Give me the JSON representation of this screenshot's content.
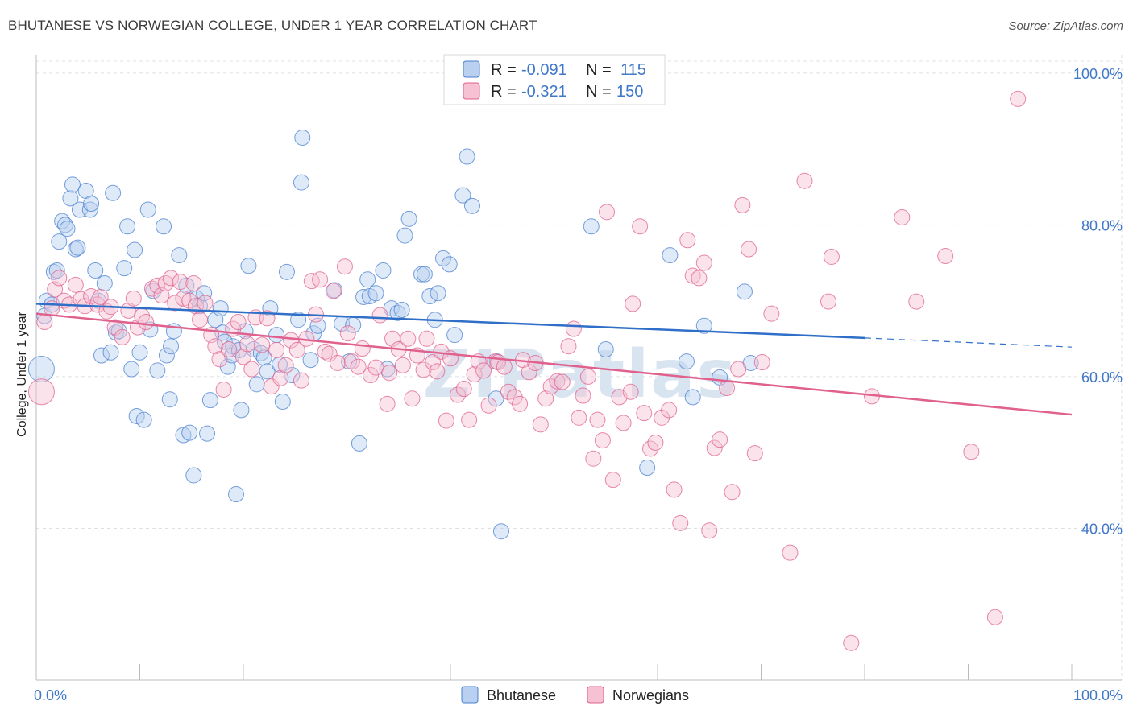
{
  "title": "BHUTANESE VS NORWEGIAN COLLEGE, UNDER 1 YEAR CORRELATION CHART",
  "source": "Source: ZipAtlas.com",
  "watermark": "ZIPatlas",
  "colors": {
    "bhutanese": "#4a7fd0",
    "bhutanese_fill": "#b9d0f0",
    "norwegians": "#e0608e",
    "norwegians_fill": "#f5c1d3",
    "grid": "#dde1e6",
    "tick_label": "#3f77c9"
  },
  "legend": {
    "rows": [
      {
        "r_label": "R =",
        "r_value": "-0.091",
        "n_label": "N =",
        "n_value": "115"
      },
      {
        "r_label": "R =",
        "r_value": "-0.321",
        "n_label": "N =",
        "n_value": "150"
      }
    ],
    "placement": "top-center"
  },
  "bottom_legend": [
    "Bhutanese",
    "Norwegians"
  ],
  "chart_data": {
    "type": "scatter",
    "title": "BHUTANESE VS NORWEGIAN COLLEGE, UNDER 1 YEAR CORRELATION CHART",
    "xlabel": "",
    "ylabel": "College, Under 1 year",
    "xlim": [
      0,
      100
    ],
    "ylim": [
      20,
      102
    ],
    "x_tick_labels": [
      "0.0%",
      "100.0%"
    ],
    "y_ticks": [
      40,
      60,
      80,
      100
    ],
    "y_tick_labels": [
      "40.0%",
      "60.0%",
      "80.0%",
      "100.0%"
    ],
    "grid": true,
    "series": [
      {
        "name": "Bhutanese",
        "r": -0.091,
        "n": 115,
        "trend": {
          "x0": 0,
          "y0": 69.6,
          "x1": 80,
          "y1": 65.1,
          "dashed_to_x": 100,
          "dashed_to_y": 63.9
        },
        "points": [
          [
            0.5,
            61
          ],
          [
            0.8,
            68
          ],
          [
            1,
            70
          ],
          [
            1.5,
            69.5
          ],
          [
            1.7,
            73.8
          ],
          [
            2,
            74
          ],
          [
            2.2,
            77.8
          ],
          [
            2.5,
            80.5
          ],
          [
            2.8,
            80
          ],
          [
            3,
            79.5
          ],
          [
            3.3,
            83.5
          ],
          [
            3.5,
            85.3
          ],
          [
            3.8,
            76.8
          ],
          [
            4,
            77
          ],
          [
            4.2,
            82
          ],
          [
            4.8,
            84.5
          ],
          [
            5.2,
            82
          ],
          [
            5.3,
            82.8
          ],
          [
            5.7,
            74
          ],
          [
            6,
            70
          ],
          [
            6.3,
            62.8
          ],
          [
            6.6,
            72.3
          ],
          [
            7.2,
            63.2
          ],
          [
            7.4,
            84.2
          ],
          [
            7.7,
            65.8
          ],
          [
            8,
            66
          ],
          [
            8.5,
            74.3
          ],
          [
            8.8,
            79.8
          ],
          [
            9.2,
            61
          ],
          [
            9.5,
            76.7
          ],
          [
            9.7,
            54.8
          ],
          [
            10,
            63.2
          ],
          [
            10.4,
            54.3
          ],
          [
            10.8,
            82
          ],
          [
            11,
            66.2
          ],
          [
            11.3,
            71.3
          ],
          [
            11.7,
            60.8
          ],
          [
            12.3,
            79.8
          ],
          [
            12.6,
            62.8
          ],
          [
            12.9,
            57
          ],
          [
            13,
            64
          ],
          [
            13.3,
            66
          ],
          [
            13.8,
            76
          ],
          [
            14.2,
            52.3
          ],
          [
            14.5,
            72
          ],
          [
            14.8,
            52.6
          ],
          [
            15.2,
            47
          ],
          [
            15.5,
            70.3
          ],
          [
            15.8,
            69.3
          ],
          [
            16.2,
            71
          ],
          [
            16.5,
            52.5
          ],
          [
            16.8,
            56.9
          ],
          [
            17.3,
            67.5
          ],
          [
            17.8,
            69
          ],
          [
            18,
            65.8
          ],
          [
            18.2,
            64.6
          ],
          [
            18.5,
            61.3
          ],
          [
            18.9,
            62.8
          ],
          [
            19,
            64
          ],
          [
            19.3,
            44.5
          ],
          [
            19.6,
            63.5
          ],
          [
            19.8,
            55.6
          ],
          [
            20.2,
            66
          ],
          [
            20.5,
            74.6
          ],
          [
            21,
            63.6
          ],
          [
            21.3,
            59
          ],
          [
            21.7,
            63.1
          ],
          [
            22,
            62.5
          ],
          [
            22.3,
            60.7
          ],
          [
            22.6,
            69
          ],
          [
            23.2,
            65.5
          ],
          [
            23.5,
            61.6
          ],
          [
            23.8,
            56.7
          ],
          [
            24.2,
            73.8
          ],
          [
            24.7,
            60.2
          ],
          [
            25.3,
            67.5
          ],
          [
            25.7,
            91.5
          ],
          [
            25.6,
            85.6
          ],
          [
            26.5,
            62.2
          ],
          [
            26.8,
            65.7
          ],
          [
            27.2,
            66.7
          ],
          [
            28.8,
            71.4
          ],
          [
            29.5,
            67
          ],
          [
            30.2,
            62
          ],
          [
            30.6,
            66.8
          ],
          [
            31.2,
            51.2
          ],
          [
            31.6,
            70.5
          ],
          [
            32,
            72.8
          ],
          [
            32.2,
            70.6
          ],
          [
            32.8,
            71
          ],
          [
            33.5,
            74
          ],
          [
            33.9,
            61
          ],
          [
            34.3,
            69
          ],
          [
            34.9,
            68.4
          ],
          [
            35.3,
            68.8
          ],
          [
            35.6,
            78.6
          ],
          [
            36,
            80.8
          ],
          [
            37.2,
            73.5
          ],
          [
            37.5,
            73.5
          ],
          [
            38,
            70.6
          ],
          [
            38.8,
            71
          ],
          [
            38.5,
            67.5
          ],
          [
            39.3,
            75.6
          ],
          [
            39.9,
            74.8
          ],
          [
            40.4,
            65.5
          ],
          [
            41.2,
            83.9
          ],
          [
            41.6,
            89
          ],
          [
            42.1,
            82.5
          ],
          [
            44.4,
            57.1
          ],
          [
            44.5,
            62
          ],
          [
            44.9,
            39.6
          ],
          [
            53.6,
            79.8
          ],
          [
            55,
            63.6
          ],
          [
            59,
            48
          ],
          [
            61.2,
            76
          ],
          [
            62.8,
            62
          ],
          [
            63.4,
            57.3
          ],
          [
            64.5,
            66.7
          ],
          [
            66,
            59.9
          ],
          [
            68.4,
            71.2
          ],
          [
            69,
            61.8
          ]
        ]
      },
      {
        "name": "Norwegians",
        "r": -0.321,
        "n": 150,
        "trend": {
          "x0": 0,
          "y0": 68.3,
          "x1": 100,
          "y1": 55.0
        },
        "points": [
          [
            0.5,
            58
          ],
          [
            0.8,
            67.2
          ],
          [
            1.5,
            69
          ],
          [
            1.8,
            71.5
          ],
          [
            2.2,
            73
          ],
          [
            2.7,
            70
          ],
          [
            3.2,
            69.5
          ],
          [
            3.8,
            72.1
          ],
          [
            4.3,
            70.2
          ],
          [
            4.7,
            69.3
          ],
          [
            5.3,
            70.6
          ],
          [
            5.9,
            69.5
          ],
          [
            6.2,
            70.5
          ],
          [
            6.8,
            68.6
          ],
          [
            7.2,
            69.2
          ],
          [
            7.6,
            66.5
          ],
          [
            8.3,
            65.2
          ],
          [
            8.9,
            68.7
          ],
          [
            9.4,
            70.3
          ],
          [
            9.8,
            66.5
          ],
          [
            10.2,
            68
          ],
          [
            10.6,
            67.2
          ],
          [
            11.2,
            71.6
          ],
          [
            11.7,
            72
          ],
          [
            12.1,
            70.7
          ],
          [
            12.5,
            72.3
          ],
          [
            13,
            73
          ],
          [
            13.4,
            69.7
          ],
          [
            13.9,
            72.5
          ],
          [
            14.2,
            70.3
          ],
          [
            14.8,
            70
          ],
          [
            15.2,
            72.3
          ],
          [
            15.4,
            69.3
          ],
          [
            15.8,
            67.5
          ],
          [
            16.3,
            69.7
          ],
          [
            16.9,
            65.5
          ],
          [
            17.3,
            64
          ],
          [
            17.7,
            62.3
          ],
          [
            18.1,
            58.3
          ],
          [
            18.6,
            63.6
          ],
          [
            19,
            66.3
          ],
          [
            19.5,
            67.2
          ],
          [
            20,
            62.6
          ],
          [
            20.4,
            64.3
          ],
          [
            20.8,
            61
          ],
          [
            21.2,
            67.8
          ],
          [
            21.8,
            64.2
          ],
          [
            22.3,
            67.7
          ],
          [
            22.7,
            58.7
          ],
          [
            23.2,
            63.5
          ],
          [
            23.6,
            59.8
          ],
          [
            24.1,
            61.5
          ],
          [
            24.6,
            64.8
          ],
          [
            25.2,
            63.5
          ],
          [
            25.6,
            59.5
          ],
          [
            26.1,
            65
          ],
          [
            26.6,
            72.6
          ],
          [
            27,
            68.2
          ],
          [
            27.4,
            72.8
          ],
          [
            27.9,
            63.3
          ],
          [
            28.3,
            63
          ],
          [
            28.7,
            71.3
          ],
          [
            29.1,
            61.8
          ],
          [
            29.8,
            74.5
          ],
          [
            30.1,
            65.7
          ],
          [
            30.5,
            62
          ],
          [
            31.1,
            61.3
          ],
          [
            31.5,
            63.7
          ],
          [
            32.3,
            60.2
          ],
          [
            32.8,
            61.2
          ],
          [
            33.2,
            68.1
          ],
          [
            33.9,
            56.4
          ],
          [
            34.1,
            60.5
          ],
          [
            34.4,
            65
          ],
          [
            35,
            63.6
          ],
          [
            35.4,
            61.5
          ],
          [
            35.9,
            65
          ],
          [
            36.3,
            57.1
          ],
          [
            36.8,
            62.8
          ],
          [
            37.4,
            60.9
          ],
          [
            37.7,
            65
          ],
          [
            38.3,
            61.9
          ],
          [
            38.7,
            60.7
          ],
          [
            39.1,
            63.3
          ],
          [
            39.6,
            54.2
          ],
          [
            40,
            62.4
          ],
          [
            40.7,
            57.6
          ],
          [
            41.3,
            58.4
          ],
          [
            41.8,
            54.3
          ],
          [
            42.3,
            60.3
          ],
          [
            42.7,
            62
          ],
          [
            43.2,
            60.8
          ],
          [
            43.7,
            56.2
          ],
          [
            44.3,
            62
          ],
          [
            44.6,
            61.9
          ],
          [
            45.2,
            61.3
          ],
          [
            45.6,
            58
          ],
          [
            46.2,
            57.3
          ],
          [
            46.7,
            56.4
          ],
          [
            47,
            62.2
          ],
          [
            47.6,
            60.6
          ],
          [
            48.2,
            61.8
          ],
          [
            48.7,
            53.7
          ],
          [
            49.2,
            57.1
          ],
          [
            49.7,
            58.7
          ],
          [
            50.3,
            59.4
          ],
          [
            50.8,
            59.3
          ],
          [
            51.4,
            64
          ],
          [
            51.9,
            66.3
          ],
          [
            52.4,
            54.6
          ],
          [
            52.8,
            57.5
          ],
          [
            53.3,
            60
          ],
          [
            53.8,
            49.2
          ],
          [
            54.2,
            54.3
          ],
          [
            54.7,
            51.6
          ],
          [
            55.1,
            81.7
          ],
          [
            55.7,
            46.4
          ],
          [
            56.3,
            57.3
          ],
          [
            56.7,
            53.9
          ],
          [
            57.4,
            58
          ],
          [
            57.6,
            69.6
          ],
          [
            58.3,
            79.8
          ],
          [
            58.7,
            55.2
          ],
          [
            59.3,
            50.5
          ],
          [
            59.8,
            51.3
          ],
          [
            60.4,
            54.6
          ],
          [
            61.1,
            55.6
          ],
          [
            61.6,
            45.1
          ],
          [
            62.2,
            40.7
          ],
          [
            62.9,
            78
          ],
          [
            63.4,
            73.3
          ],
          [
            64,
            73
          ],
          [
            64.5,
            75
          ],
          [
            65,
            39.7
          ],
          [
            65.5,
            50.6
          ],
          [
            66,
            51.7
          ],
          [
            66.7,
            58.5
          ],
          [
            67.2,
            44.8
          ],
          [
            67.8,
            61
          ],
          [
            68.2,
            82.6
          ],
          [
            68.8,
            76.8
          ],
          [
            69.4,
            49.9
          ],
          [
            70.1,
            61.9
          ],
          [
            71,
            68.3
          ],
          [
            72.8,
            36.8
          ],
          [
            74.2,
            85.8
          ],
          [
            76.5,
            69.9
          ],
          [
            76.8,
            75.8
          ],
          [
            78.7,
            24.9
          ],
          [
            80.7,
            57.4
          ],
          [
            83.6,
            81
          ],
          [
            85,
            69.9
          ],
          [
            87.8,
            75.9
          ],
          [
            90.3,
            50.1
          ],
          [
            92.6,
            28.3
          ],
          [
            94.8,
            96.6
          ]
        ]
      }
    ]
  }
}
